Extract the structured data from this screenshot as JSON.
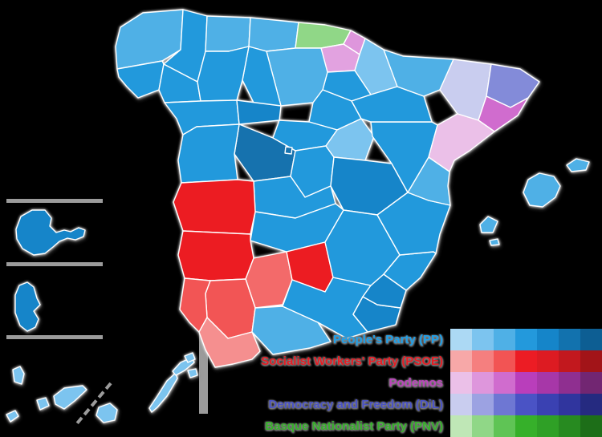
{
  "map": {
    "divider_color": "#9b9b9b",
    "provinces": [
      {
        "id": "a-coruna",
        "party": "PP",
        "color": "#4FB0E6"
      },
      {
        "id": "lugo",
        "party": "PP",
        "color": "#2399DC"
      },
      {
        "id": "pontevedra",
        "party": "PP",
        "color": "#2399DC"
      },
      {
        "id": "ourense",
        "party": "PP",
        "color": "#2399DC"
      },
      {
        "id": "asturias",
        "party": "PP",
        "color": "#4FB0E6"
      },
      {
        "id": "cantabria",
        "party": "PP",
        "color": "#4FB0E6"
      },
      {
        "id": "biscay",
        "party": "PNV",
        "color": "#90D787"
      },
      {
        "id": "gipuzkoa",
        "party": "Podemos",
        "color": "#DE96DC"
      },
      {
        "id": "alava",
        "party": "Podemos",
        "color": "#E2A2E0"
      },
      {
        "id": "navarre",
        "party": "PP",
        "color": "#7CC4EF"
      },
      {
        "id": "la-rioja",
        "party": "PP",
        "color": "#2399DC"
      },
      {
        "id": "burgos",
        "party": "PP",
        "color": "#4FB0E6"
      },
      {
        "id": "palencia",
        "party": "PP",
        "color": "#2399DC"
      },
      {
        "id": "leon",
        "party": "PP",
        "color": "#2399DC"
      },
      {
        "id": "zamora",
        "party": "PP",
        "color": "#2399DC"
      },
      {
        "id": "valladolid",
        "party": "PP",
        "color": "#1585C9"
      },
      {
        "id": "soria",
        "party": "PP",
        "color": "#2399DC"
      },
      {
        "id": "segovia",
        "party": "PP",
        "color": "#2399DC"
      },
      {
        "id": "avila",
        "party": "PP",
        "color": "#1272AE"
      },
      {
        "id": "avila-exclave",
        "party": "PP",
        "color": "#1272AE"
      },
      {
        "id": "salamanca",
        "party": "PP",
        "color": "#2399DC"
      },
      {
        "id": "madrid",
        "party": "PP",
        "color": "#2399DC"
      },
      {
        "id": "guadalajara",
        "party": "PP",
        "color": "#7CC4EF"
      },
      {
        "id": "cuenca",
        "party": "PP",
        "color": "#1585C9"
      },
      {
        "id": "toledo",
        "party": "PP",
        "color": "#2399DC"
      },
      {
        "id": "ciudad-real",
        "party": "PP",
        "color": "#2399DC"
      },
      {
        "id": "caceres",
        "party": "PSOE",
        "color": "#EC1C24"
      },
      {
        "id": "badajoz",
        "party": "PSOE",
        "color": "#EC1C24"
      },
      {
        "id": "cordoba",
        "party": "PSOE",
        "color": "#F36A6A"
      },
      {
        "id": "jaen",
        "party": "PSOE",
        "color": "#EC1C24"
      },
      {
        "id": "sevilla",
        "party": "PSOE",
        "color": "#F25454"
      },
      {
        "id": "huelva",
        "party": "PSOE",
        "color": "#F25454"
      },
      {
        "id": "cadiz",
        "party": "PSOE",
        "color": "#F58F8F"
      },
      {
        "id": "malaga",
        "party": "PP",
        "color": "#4FB0E6"
      },
      {
        "id": "granada",
        "party": "PP",
        "color": "#2399DC"
      },
      {
        "id": "almeria",
        "party": "PP",
        "color": "#1585C9"
      },
      {
        "id": "murcia",
        "party": "PP",
        "color": "#1585C9"
      },
      {
        "id": "albacete",
        "party": "PP",
        "color": "#2399DC"
      },
      {
        "id": "alicante",
        "party": "PP",
        "color": "#2399DC"
      },
      {
        "id": "valencia",
        "party": "PP",
        "color": "#2399DC"
      },
      {
        "id": "castellon",
        "party": "PP",
        "color": "#4FB0E6"
      },
      {
        "id": "teruel",
        "party": "PP",
        "color": "#2399DC"
      },
      {
        "id": "zaragoza",
        "party": "PP",
        "color": "#2399DC"
      },
      {
        "id": "huesca",
        "party": "PP",
        "color": "#4FB0E6"
      },
      {
        "id": "lleida",
        "party": "DiL",
        "color": "#C9CDEF"
      },
      {
        "id": "girona",
        "party": "DiL",
        "color": "#838BD9"
      },
      {
        "id": "barcelona",
        "party": "Podemos",
        "color": "#D06CCE"
      },
      {
        "id": "tarragona",
        "party": "Podemos",
        "color": "#EBC0E8"
      },
      {
        "id": "mallorca",
        "party": "PP",
        "color": "#4FB0E6"
      },
      {
        "id": "menorca",
        "party": "PP",
        "color": "#4FB0E6"
      },
      {
        "id": "ibiza",
        "party": "PP",
        "color": "#4FB0E6"
      },
      {
        "id": "formentera",
        "party": "PP",
        "color": "#4FB0E6"
      },
      {
        "id": "la-palma",
        "party": "PP",
        "color": "#7CC4EF"
      },
      {
        "id": "el-hierro",
        "party": "PP",
        "color": "#7CC4EF"
      },
      {
        "id": "la-gomera",
        "party": "PP",
        "color": "#7CC4EF"
      },
      {
        "id": "tenerife",
        "party": "PP",
        "color": "#7CC4EF"
      },
      {
        "id": "gran-canaria",
        "party": "PP",
        "color": "#7CC4EF"
      },
      {
        "id": "fuerteventura",
        "party": "PP",
        "color": "#7CC4EF"
      },
      {
        "id": "lanzarote",
        "party": "PP",
        "color": "#7CC4EF"
      },
      {
        "id": "canary-inset-archipelago",
        "party": "PP",
        "color": "#1585C9"
      },
      {
        "id": "canary-inset-island",
        "party": "PP",
        "color": "#1585C9"
      },
      {
        "id": "ceuta",
        "party": "PP",
        "color": "#7CC4EF"
      },
      {
        "id": "melilla",
        "party": "PP",
        "color": "#7CC4EF"
      }
    ]
  },
  "legend": {
    "entries": [
      {
        "label": "People's Party (PP)",
        "text_color": "#1E9FE8",
        "shades": [
          "#ACD9F4",
          "#7CC4EF",
          "#4FB0E6",
          "#2399DC",
          "#1585C9",
          "#1272AE",
          "#0D5E93"
        ]
      },
      {
        "label": "Socialist Workers' Party (PSOE)",
        "text_color": "#E51D24",
        "shades": [
          "#F7A8A8",
          "#F57F7F",
          "#F25454",
          "#EC1C24",
          "#DD1B22",
          "#C2181E",
          "#A21418"
        ]
      },
      {
        "label": "Podemos",
        "text_color": "#BC43BC",
        "shades": [
          "#EBC0E8",
          "#DE96DC",
          "#D06CCE",
          "#B93EBB",
          "#A737A8",
          "#8F2F90",
          "#722672"
        ]
      },
      {
        "label": "Democracy and Freedom (DiL)",
        "text_color": "#4A53C5",
        "shades": [
          "#C9CDEF",
          "#9CA2E2",
          "#6E77D3",
          "#4A53C5",
          "#3A41B2",
          "#30359E",
          "#252A80"
        ]
      },
      {
        "label": "Basque Nationalist Party (PNV)",
        "text_color": "#36B02A",
        "shades": [
          "#BFE7B6",
          "#90D787",
          "#5FC455",
          "#36B02A",
          "#2FA026",
          "#278A20",
          "#1D6E18"
        ]
      }
    ]
  }
}
